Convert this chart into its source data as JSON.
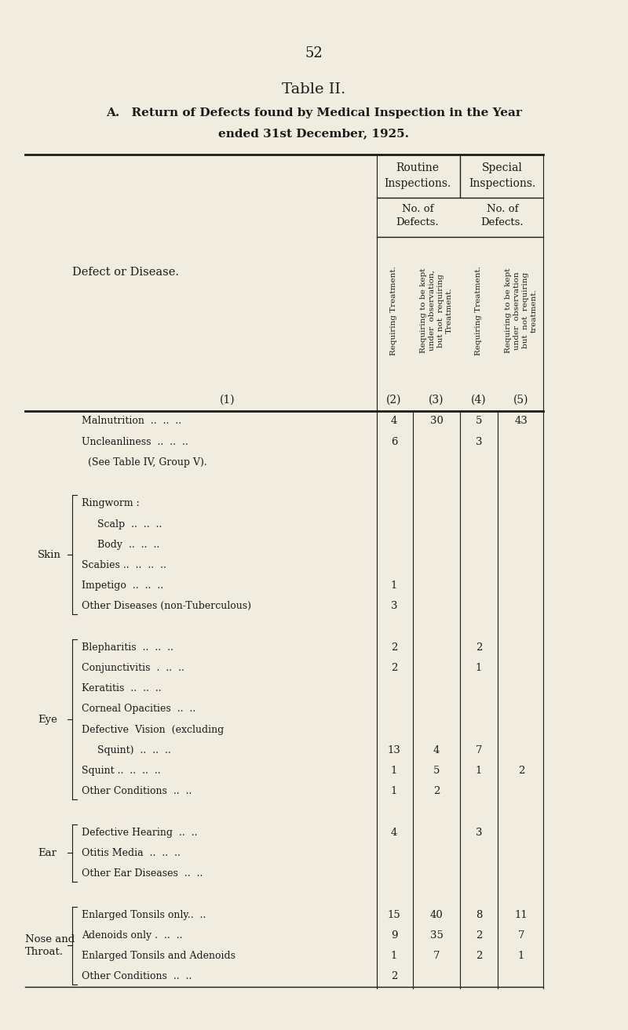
{
  "page_number": "52",
  "title_line1": "Table II.",
  "subtitle_line1": "A. Return of Defects found by Medical Inspection in the Year",
  "subtitle_line2": "ended 31st December, 1925.",
  "bg_color": "#f0ece0",
  "text_color": "#1a1a1a",
  "col_headers_top": [
    "Routine\nInspections.",
    "Special\nInspections."
  ],
  "col_headers_mid": [
    "No. of\nDefects.",
    "No. of\nDefects."
  ],
  "col_headers_rot_2": "Requiring Treatment.",
  "col_headers_rot_3": "Requiring to be kept\nunder  observation,\nbut not  requiring\nTreatment.",
  "col_headers_rot_4": "Requiring Treatment.",
  "col_headers_rot_5": "Requiring to be kept\nunder  observation\nbut  not  requiring\ntreatment.",
  "col_nums": [
    "(1)",
    "(2)",
    "(3)",
    "(4)",
    "(5)"
  ],
  "rows": [
    {
      "group": "",
      "indent": 0,
      "label": "Malnutrition  ..  ..  ..",
      "c2": "4",
      "c3": "30",
      "c4": "5",
      "c5": "43"
    },
    {
      "group": "",
      "indent": 0,
      "label": "Uncleanliness  ..  ..  ..",
      "c2": "6",
      "c3": "",
      "c4": "3",
      "c5": ""
    },
    {
      "group": "",
      "indent": 0,
      "label": "  (See Table IV, Group V).",
      "c2": "",
      "c3": "",
      "c4": "",
      "c5": ""
    },
    {
      "group": "",
      "indent": 0,
      "label": "",
      "c2": "",
      "c3": "",
      "c4": "",
      "c5": ""
    },
    {
      "group": "Skin",
      "indent": 0,
      "label": "Ringworm :",
      "c2": "",
      "c3": "",
      "c4": "",
      "c5": ""
    },
    {
      "group": "",
      "indent": 1,
      "label": "Scalp  ..  ..  ..",
      "c2": "",
      "c3": "",
      "c4": "",
      "c5": ""
    },
    {
      "group": "",
      "indent": 1,
      "label": "Body  ..  ..  ..",
      "c2": "",
      "c3": "",
      "c4": "",
      "c5": ""
    },
    {
      "group": "",
      "indent": 0,
      "label": "Scabies ..  ..  ..  ..",
      "c2": "",
      "c3": "",
      "c4": "",
      "c5": ""
    },
    {
      "group": "",
      "indent": 0,
      "label": "Impetigo  ..  ..  ..",
      "c2": "1",
      "c3": "",
      "c4": "",
      "c5": ""
    },
    {
      "group": "",
      "indent": 0,
      "label": "Other Diseases (non-Tuberculous)",
      "c2": "3",
      "c3": "",
      "c4": "",
      "c5": ""
    },
    {
      "group": "",
      "indent": 0,
      "label": "",
      "c2": "",
      "c3": "",
      "c4": "",
      "c5": ""
    },
    {
      "group": "Eye",
      "indent": 0,
      "label": "Blepharitis  ..  ..  ..",
      "c2": "2",
      "c3": "",
      "c4": "2",
      "c5": ""
    },
    {
      "group": "",
      "indent": 0,
      "label": "Conjunctivitis  .  ..  ..",
      "c2": "2",
      "c3": "",
      "c4": "1",
      "c5": ""
    },
    {
      "group": "",
      "indent": 0,
      "label": "Keratitis  ..  ..  ..",
      "c2": "",
      "c3": "",
      "c4": "",
      "c5": ""
    },
    {
      "group": "",
      "indent": 0,
      "label": "Corneal Opacities  ..  ..",
      "c2": "",
      "c3": "",
      "c4": "",
      "c5": ""
    },
    {
      "group": "",
      "indent": 0,
      "label": "Defective  Vision  (excluding",
      "c2": "",
      "c3": "",
      "c4": "",
      "c5": ""
    },
    {
      "group": "",
      "indent": 1,
      "label": "Squint)  ..  ..  ..",
      "c2": "13",
      "c3": "4",
      "c4": "7",
      "c5": ""
    },
    {
      "group": "",
      "indent": 0,
      "label": "Squint ..  ..  ..  ..",
      "c2": "1",
      "c3": "5",
      "c4": "1",
      "c5": "2"
    },
    {
      "group": "",
      "indent": 0,
      "label": "Other Conditions  ..  ..",
      "c2": "1",
      "c3": "2",
      "c4": "",
      "c5": ""
    },
    {
      "group": "",
      "indent": 0,
      "label": "",
      "c2": "",
      "c3": "",
      "c4": "",
      "c5": ""
    },
    {
      "group": "Ear",
      "indent": 0,
      "label": "Defective Hearing  ..  ..",
      "c2": "4",
      "c3": "",
      "c4": "3",
      "c5": ""
    },
    {
      "group": "",
      "indent": 0,
      "label": "Otitis Media  ..  ..  ..",
      "c2": "",
      "c3": "",
      "c4": "",
      "c5": ""
    },
    {
      "group": "",
      "indent": 0,
      "label": "Other Ear Diseases  ..  ..",
      "c2": "",
      "c3": "",
      "c4": "",
      "c5": ""
    },
    {
      "group": "",
      "indent": 0,
      "label": "",
      "c2": "",
      "c3": "",
      "c4": "",
      "c5": ""
    },
    {
      "group": "Nose and\nThroat.",
      "indent": 0,
      "label": "Enlarged Tonsils only..  ..",
      "c2": "15",
      "c3": "40",
      "c4": "8",
      "c5": "11"
    },
    {
      "group": "",
      "indent": 0,
      "label": "Adenoids only .  ..  ..",
      "c2": "9",
      "c3": "35",
      "c4": "2",
      "c5": "7"
    },
    {
      "group": "",
      "indent": 0,
      "label": "Enlarged Tonsils and Adenoids",
      "c2": "1",
      "c3": "7",
      "c4": "2",
      "c5": "1"
    },
    {
      "group": "",
      "indent": 0,
      "label": "Other Conditions  ..  ..",
      "c2": "2",
      "c3": "",
      "c4": "",
      "c5": ""
    }
  ],
  "brace_groups": {
    "Skin": [
      4,
      9
    ],
    "Eye": [
      11,
      18
    ],
    "Ear": [
      20,
      22
    ],
    "Nose and\nThroat.": [
      24,
      27
    ]
  }
}
